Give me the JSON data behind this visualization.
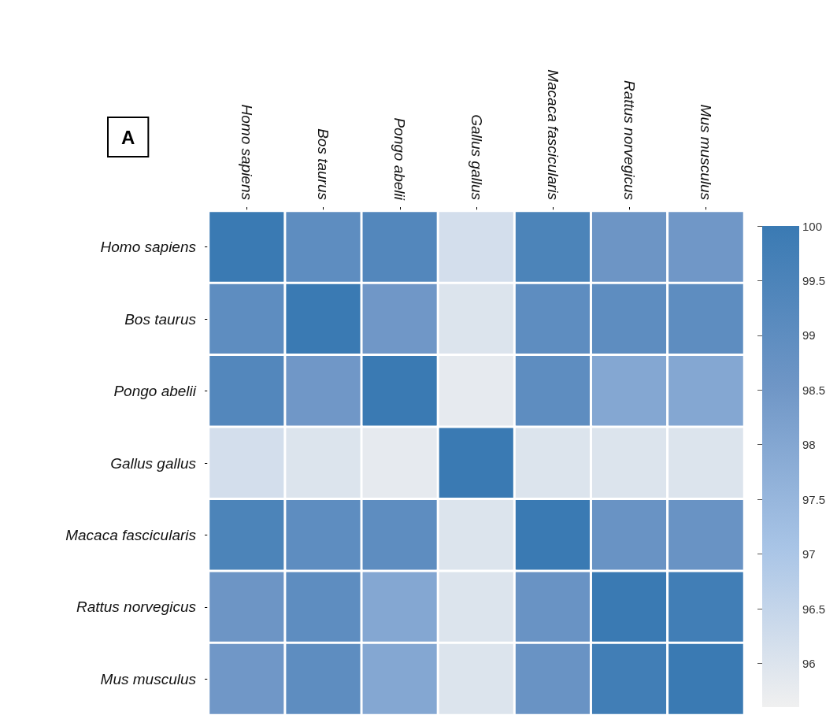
{
  "chart_data": {
    "type": "heatmap",
    "categories": [
      "Homo sapiens",
      "Bos taurus",
      "Pongo abelii",
      "Gallus gallus",
      "Macaca fascicularis",
      "Rattus norvegicus",
      "Mus musculus"
    ],
    "y_categories": [
      "Homo sapiens",
      "Bos taurus",
      "Pongo abelii",
      "Gallus gallus",
      "Macaca fascicularis",
      "Rattus norvegicus",
      "Mus musculus"
    ],
    "cells": [
      [
        100,
        99.0,
        99.3,
        96.2,
        99.5,
        98.6,
        98.5
      ],
      [
        99.0,
        100,
        98.5,
        96.0,
        99.0,
        99.0,
        99.0
      ],
      [
        99.3,
        98.5,
        100,
        95.8,
        99.0,
        98.0,
        98.0
      ],
      [
        96.2,
        96.0,
        95.8,
        100,
        96.0,
        96.0,
        96.0
      ],
      [
        99.5,
        99.0,
        99.0,
        96.0,
        100,
        98.7,
        98.7
      ],
      [
        98.6,
        99.0,
        98.0,
        96.0,
        98.7,
        100,
        99.8
      ],
      [
        98.5,
        99.0,
        98.0,
        96.0,
        98.7,
        99.8,
        100
      ]
    ],
    "clim": [
      95.6,
      100
    ],
    "cticks": [
      96,
      96.5,
      97,
      97.5,
      98,
      98.5,
      99,
      99.5,
      100
    ],
    "annotations": [
      "A"
    ]
  }
}
